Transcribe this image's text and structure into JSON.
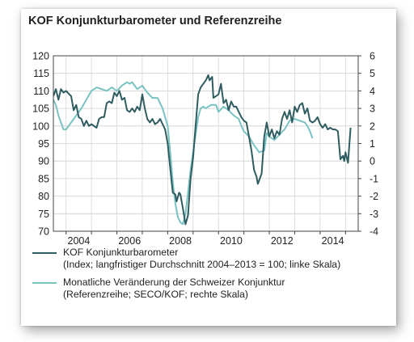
{
  "chart_data": {
    "type": "line",
    "title": "KOF Konjunkturbarometer und Referenzreihe",
    "left_axis": {
      "ylim": [
        70,
        120
      ],
      "ticks": [
        "120",
        "115",
        "110",
        "105",
        "100",
        "95",
        "90",
        "85",
        "80",
        "75",
        "70"
      ]
    },
    "right_axis": {
      "ylim": [
        -4,
        6
      ],
      "ticks": [
        "6",
        "5",
        "4",
        "3",
        "2",
        "1",
        "0",
        "-1",
        "-2",
        "-3",
        "-4"
      ]
    },
    "x_axis": {
      "xlim": [
        2003.5,
        2015.5
      ],
      "ticks": [
        2004,
        2006,
        2008,
        2010,
        2012,
        2014
      ],
      "tick_labels": [
        "2004",
        "2006",
        "2008",
        "2010",
        "2012",
        "2014"
      ]
    },
    "grid": true,
    "series": [
      {
        "name": "KOF Konjunkturbarometer",
        "label_line2": "(Index; langfristiger Durchschnitt 2004–2013 = 100; linke Skala)",
        "axis": "left",
        "color": "#2e5c60",
        "points": [
          [
            2003.5,
            108.5
          ],
          [
            2003.6,
            110.5
          ],
          [
            2003.7,
            107.5
          ],
          [
            2003.8,
            110.5
          ],
          [
            2003.9,
            109.5
          ],
          [
            2004.0,
            110.0
          ],
          [
            2004.2,
            108.5
          ],
          [
            2004.3,
            104.5
          ],
          [
            2004.4,
            106.0
          ],
          [
            2004.5,
            102.5
          ],
          [
            2004.6,
            102.0
          ],
          [
            2004.7,
            100.0
          ],
          [
            2004.8,
            101.5
          ],
          [
            2004.9,
            100.0
          ],
          [
            2005.0,
            100.5
          ],
          [
            2005.2,
            99.5
          ],
          [
            2005.3,
            102.0
          ],
          [
            2005.4,
            102.5
          ],
          [
            2005.5,
            102.5
          ],
          [
            2005.6,
            106.5
          ],
          [
            2005.7,
            107.0
          ],
          [
            2005.8,
            106.5
          ],
          [
            2005.9,
            109.5
          ],
          [
            2006.0,
            108.5
          ],
          [
            2006.1,
            110.0
          ],
          [
            2006.2,
            107.5
          ],
          [
            2006.3,
            108.0
          ],
          [
            2006.4,
            104.5
          ],
          [
            2006.5,
            104.0
          ],
          [
            2006.6,
            105.0
          ],
          [
            2006.7,
            104.0
          ],
          [
            2006.8,
            105.5
          ],
          [
            2006.9,
            104.5
          ],
          [
            2007.0,
            109.0
          ],
          [
            2007.1,
            105.0
          ],
          [
            2007.2,
            102.0
          ],
          [
            2007.3,
            101.0
          ],
          [
            2007.4,
            102.0
          ],
          [
            2007.5,
            100.5
          ],
          [
            2007.6,
            101.0
          ],
          [
            2007.7,
            102.0
          ],
          [
            2007.8,
            100.5
          ],
          [
            2007.9,
            99.0
          ],
          [
            2008.0,
            95.0
          ],
          [
            2008.1,
            88.0
          ],
          [
            2008.2,
            81.0
          ],
          [
            2008.3,
            80.5
          ],
          [
            2008.35,
            78.5
          ],
          [
            2008.45,
            81.0
          ],
          [
            2008.5,
            80.5
          ],
          [
            2008.6,
            76.5
          ],
          [
            2008.7,
            72.0
          ],
          [
            2008.8,
            74.5
          ],
          [
            2008.9,
            85.0
          ],
          [
            2009.0,
            91.0
          ],
          [
            2009.1,
            100.0
          ],
          [
            2009.2,
            109.0
          ],
          [
            2009.3,
            111.0
          ],
          [
            2009.4,
            112.0
          ],
          [
            2009.5,
            113.0
          ],
          [
            2009.6,
            114.5
          ],
          [
            2009.65,
            113.0
          ],
          [
            2009.75,
            114.0
          ],
          [
            2009.8,
            108.0
          ],
          [
            2009.9,
            108.5
          ],
          [
            2010.0,
            109.0
          ],
          [
            2010.1,
            112.0
          ],
          [
            2010.2,
            106.5
          ],
          [
            2010.3,
            107.5
          ],
          [
            2010.4,
            104.5
          ],
          [
            2010.5,
            107.0
          ],
          [
            2010.6,
            105.5
          ],
          [
            2010.7,
            105.5
          ],
          [
            2010.8,
            104.0
          ],
          [
            2010.9,
            102.5
          ],
          [
            2011.0,
            101.5
          ],
          [
            2011.1,
            101.0
          ],
          [
            2011.2,
            97.0
          ],
          [
            2011.3,
            93.0
          ],
          [
            2011.4,
            87.5
          ],
          [
            2011.5,
            85.5
          ],
          [
            2011.55,
            83.5
          ],
          [
            2011.6,
            84.5
          ],
          [
            2011.7,
            86.5
          ],
          [
            2011.8,
            97.0
          ],
          [
            2011.9,
            101.0
          ],
          [
            2012.0,
            97.0
          ],
          [
            2012.1,
            99.0
          ],
          [
            2012.2,
            96.5
          ],
          [
            2012.3,
            98.5
          ],
          [
            2012.4,
            97.5
          ],
          [
            2012.5,
            102.0
          ],
          [
            2012.6,
            104.0
          ],
          [
            2012.7,
            102.0
          ],
          [
            2012.8,
            104.5
          ],
          [
            2012.9,
            101.0
          ],
          [
            2013.0,
            105.5
          ],
          [
            2013.1,
            104.0
          ],
          [
            2013.2,
            106.0
          ],
          [
            2013.3,
            106.5
          ],
          [
            2013.4,
            103.5
          ],
          [
            2013.5,
            105.0
          ],
          [
            2013.6,
            101.5
          ],
          [
            2013.7,
            101.0
          ],
          [
            2013.8,
            101.5
          ],
          [
            2013.9,
            102.5
          ],
          [
            2014.0,
            100.5
          ],
          [
            2014.1,
            99.5
          ],
          [
            2014.2,
            100.5
          ],
          [
            2014.3,
            99.0
          ],
          [
            2014.4,
            99.5
          ],
          [
            2014.5,
            99.0
          ],
          [
            2014.6,
            99.0
          ],
          [
            2014.7,
            98.5
          ],
          [
            2014.8,
            90.5
          ],
          [
            2014.9,
            91.5
          ],
          [
            2014.95,
            90.0
          ],
          [
            2015.0,
            92.5
          ],
          [
            2015.1,
            89.5
          ],
          [
            2015.2,
            99.5
          ]
        ]
      },
      {
        "name": "Monatliche Veränderung der Schweizer Konjunktur",
        "label_line2": "(Referenzreihe; SECO/KOF; rechte Skala)",
        "axis": "right",
        "color": "#79c3c2",
        "points": [
          [
            2003.5,
            3.5
          ],
          [
            2003.6,
            3.2
          ],
          [
            2003.7,
            2.6
          ],
          [
            2003.8,
            2.2
          ],
          [
            2003.9,
            1.8
          ],
          [
            2004.0,
            1.8
          ],
          [
            2004.2,
            2.2
          ],
          [
            2004.4,
            2.6
          ],
          [
            2004.6,
            3.0
          ],
          [
            2004.8,
            3.5
          ],
          [
            2005.0,
            4.0
          ],
          [
            2005.2,
            4.2
          ],
          [
            2005.4,
            4.1
          ],
          [
            2005.6,
            4.0
          ],
          [
            2005.8,
            4.2
          ],
          [
            2006.0,
            4.0
          ],
          [
            2006.2,
            4.3
          ],
          [
            2006.4,
            4.5
          ],
          [
            2006.5,
            4.4
          ],
          [
            2006.6,
            4.5
          ],
          [
            2006.8,
            4.1
          ],
          [
            2007.0,
            4.3
          ],
          [
            2007.2,
            3.9
          ],
          [
            2007.4,
            3.6
          ],
          [
            2007.6,
            3.6
          ],
          [
            2007.8,
            3.0
          ],
          [
            2008.0,
            2.0
          ],
          [
            2008.1,
            0.5
          ],
          [
            2008.2,
            -1.2
          ],
          [
            2008.3,
            -2.4
          ],
          [
            2008.4,
            -3.2
          ],
          [
            2008.5,
            -3.5
          ],
          [
            2008.6,
            -3.6
          ],
          [
            2008.7,
            -3.0
          ],
          [
            2008.8,
            -1.8
          ],
          [
            2008.9,
            -0.5
          ],
          [
            2009.0,
            0.5
          ],
          [
            2009.1,
            1.5
          ],
          [
            2009.2,
            2.5
          ],
          [
            2009.3,
            3.0
          ],
          [
            2009.4,
            3.1
          ],
          [
            2009.5,
            3.0
          ],
          [
            2009.7,
            3.2
          ],
          [
            2009.9,
            3.2
          ],
          [
            2010.0,
            2.8
          ],
          [
            2010.2,
            3.1
          ],
          [
            2010.4,
            2.9
          ],
          [
            2010.6,
            2.6
          ],
          [
            2010.8,
            2.4
          ],
          [
            2010.9,
            2.0
          ],
          [
            2011.0,
            1.7
          ],
          [
            2011.2,
            1.4
          ],
          [
            2011.4,
            0.9
          ],
          [
            2011.6,
            0.5
          ],
          [
            2011.8,
            0.6
          ],
          [
            2011.9,
            1.6
          ],
          [
            2012.0,
            1.4
          ],
          [
            2012.2,
            1.2
          ],
          [
            2012.4,
            1.5
          ],
          [
            2012.6,
            1.8
          ],
          [
            2012.8,
            2.3
          ],
          [
            2013.0,
            2.4
          ],
          [
            2013.2,
            2.3
          ],
          [
            2013.4,
            2.2
          ],
          [
            2013.5,
            2.0
          ],
          [
            2013.6,
            1.7
          ],
          [
            2013.7,
            1.3
          ]
        ]
      }
    ]
  }
}
